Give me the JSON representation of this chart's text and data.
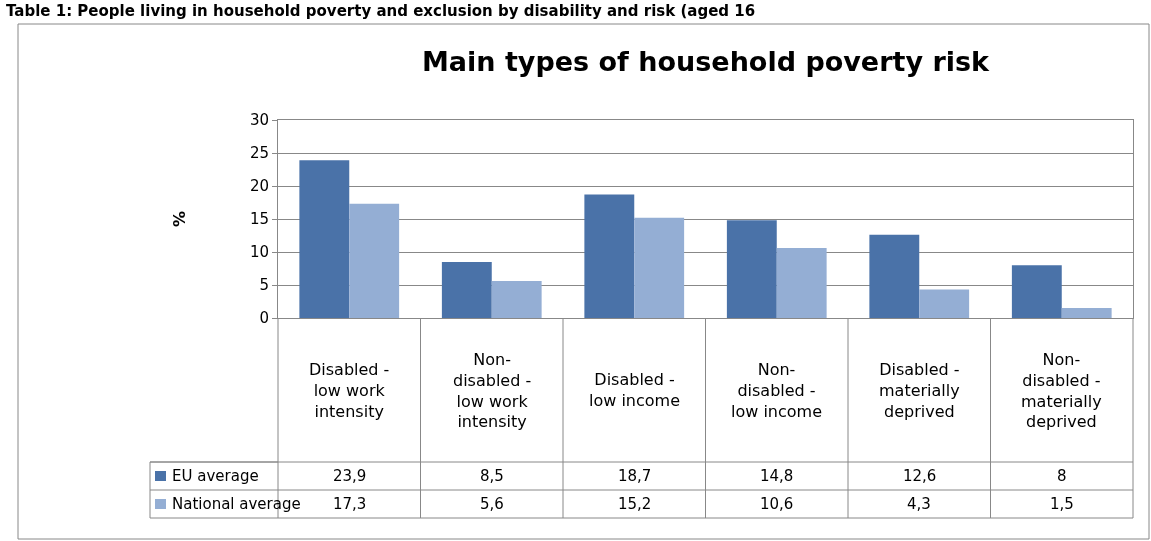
{
  "chart_data": {
    "type": "bar",
    "title": "Main types of household poverty risk",
    "ylabel": "%",
    "annotations": [
      "Table 1: People living in household poverty and exclusion by disability and risk (aged 16"
    ],
    "categories": [
      "Disabled - low work intensity",
      "Non-disabled - low work intensity",
      "Disabled - low income",
      "Non-disabled - low income",
      "Disabled - materially deprived",
      "Non-disabled - materially deprived"
    ],
    "series": [
      {
        "name": "EU average",
        "color": "#4a72a8",
        "values": [
          23.9,
          8.5,
          18.7,
          14.8,
          12.6,
          8
        ],
        "value_labels": [
          "23,9",
          "8,5",
          "18,7",
          "14,8",
          "12,6",
          "8"
        ]
      },
      {
        "name": "National average",
        "color": "#94aed4",
        "values": [
          17.3,
          5.6,
          15.2,
          10.6,
          4.3,
          1.5
        ],
        "value_labels": [
          "17,3",
          "5,6",
          "15,2",
          "10,6",
          "4,3",
          "1,5"
        ]
      }
    ],
    "ylim": [
      0,
      30
    ],
    "yticks": [
      0,
      5,
      10,
      15,
      20,
      25,
      30
    ],
    "grid": "y",
    "legend": "bottom left"
  }
}
